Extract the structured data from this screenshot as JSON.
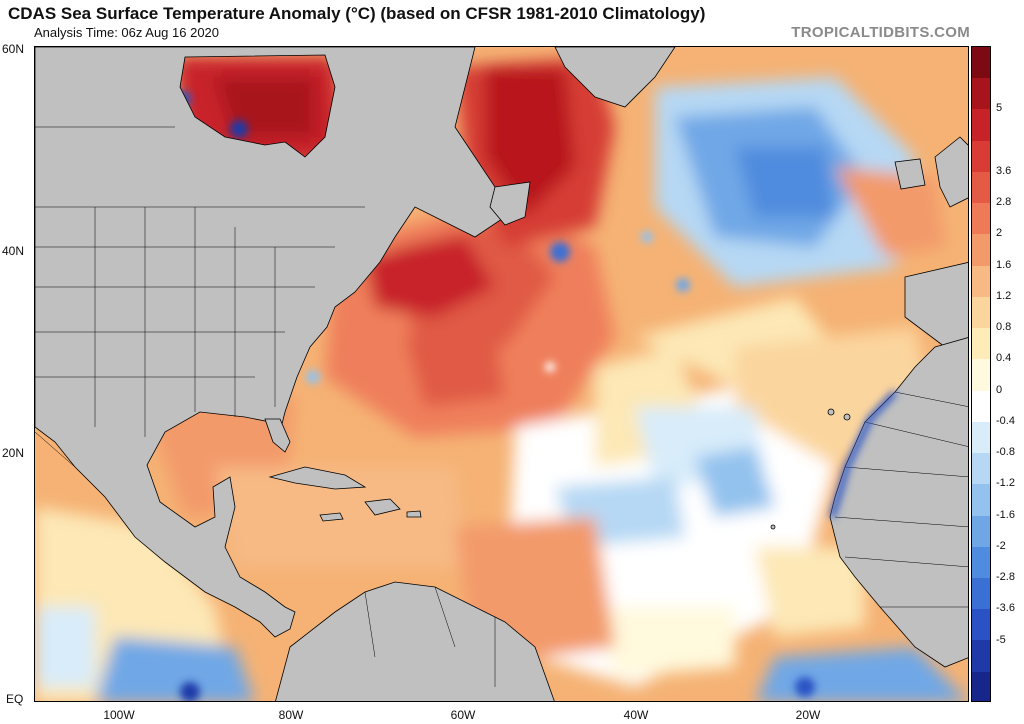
{
  "header": {
    "title": "CDAS Sea Surface Temperature Anomaly (°C) (based on CFSR 1981-2010 Climatology)",
    "analysis_time": "Analysis Time: 06z Aug 16 2020",
    "credit": "TROPICALTIDBITS.COM"
  },
  "map": {
    "lat_labels": [
      "60N",
      "40N",
      "20N",
      "EQ"
    ],
    "lon_labels": [
      "100W",
      "80W",
      "60W",
      "40W",
      "20W"
    ]
  },
  "colorbar": {
    "labels": [
      "5",
      "3.6",
      "2.8",
      "2",
      "1.6",
      "1.2",
      "0.8",
      "0.4",
      "0",
      "-0.4",
      "-0.8",
      "-1.2",
      "-1.6",
      "-2",
      "-2.8",
      "-3.6",
      "-5"
    ],
    "colors": [
      "#7d0a12",
      "#a8141c",
      "#c62228",
      "#d93c34",
      "#e45a44",
      "#ee7a58",
      "#f39a6b",
      "#f7ba85",
      "#fbd59e",
      "#fdebb8",
      "#fff9dd",
      "#ffffff",
      "#d8ecfa",
      "#b6d8f4",
      "#93c2ee",
      "#6fa7e6",
      "#4f8bde",
      "#3a6fd4",
      "#2a52c4",
      "#1f3aa8",
      "#17268a"
    ]
  },
  "legend_colors": {
    "land": "#c0c0c0",
    "warm_strong": "#c62228",
    "warm": "#ee7a58",
    "neutral": "#ffffff",
    "cool": "#6fa7e6"
  }
}
